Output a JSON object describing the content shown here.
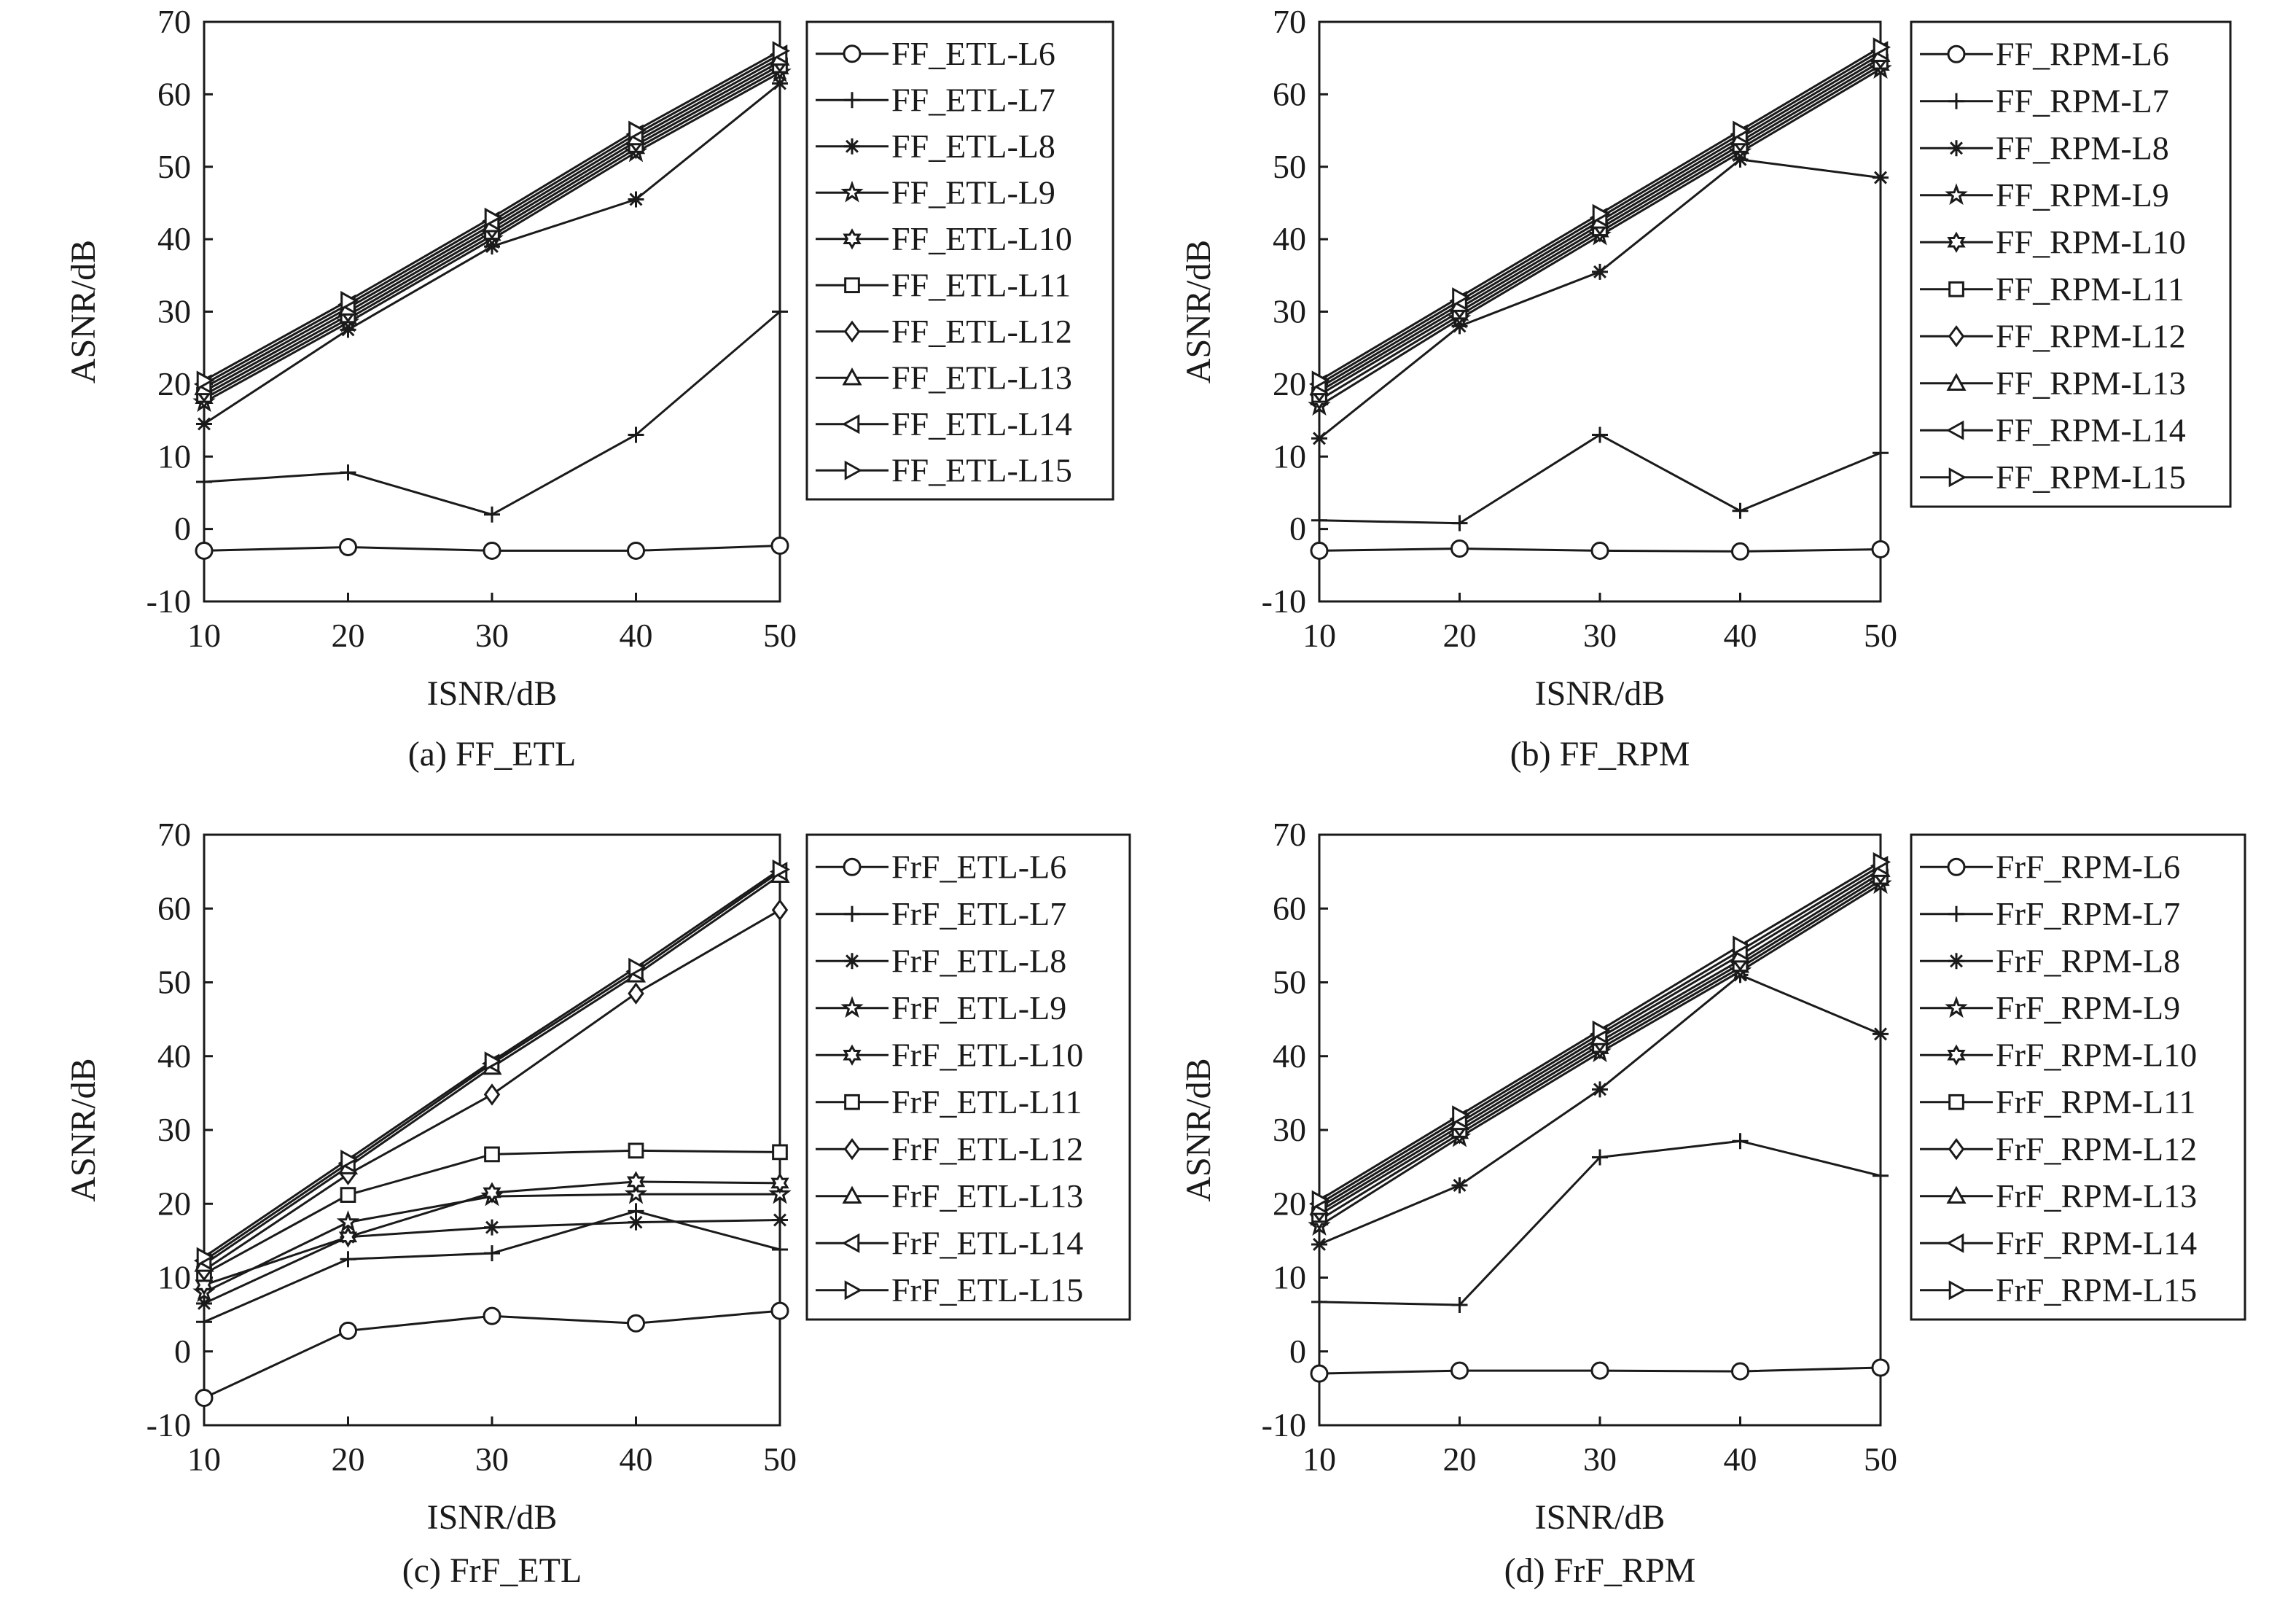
{
  "chart_data": [
    {
      "type": "line",
      "caption": "(a) FF_ETL",
      "xlabel": "ISNR/dB",
      "ylabel": "ASNR/dB",
      "xlim": [
        10,
        50
      ],
      "ylim": [
        -10,
        70
      ],
      "xticks": [
        10,
        20,
        30,
        40,
        50
      ],
      "yticks": [
        -10,
        0,
        10,
        20,
        30,
        40,
        50,
        60,
        70
      ],
      "legend_position": "right",
      "x": [
        10,
        20,
        30,
        40,
        50
      ],
      "series": [
        {
          "name": "FF_ETL-L6",
          "marker": "circle",
          "values": [
            -3,
            -2.5,
            -3,
            -3,
            -2.3
          ]
        },
        {
          "name": "FF_ETL-L7",
          "marker": "plus",
          "values": [
            6.5,
            7.8,
            2,
            13,
            30
          ]
        },
        {
          "name": "FF_ETL-L8",
          "marker": "asterisk",
          "values": [
            14.5,
            27.5,
            39,
            45.5,
            61.5
          ]
        },
        {
          "name": "FF_ETL-L9",
          "marker": "star",
          "values": [
            17.5,
            28.5,
            40,
            52,
            63
          ]
        },
        {
          "name": "FF_ETL-L10",
          "marker": "hexagram",
          "values": [
            18,
            29,
            40.5,
            52.5,
            63.5
          ]
        },
        {
          "name": "FF_ETL-L11",
          "marker": "square",
          "values": [
            18.5,
            29.5,
            41,
            53,
            64
          ]
        },
        {
          "name": "FF_ETL-L12",
          "marker": "diamond",
          "values": [
            19,
            30,
            41.5,
            53.5,
            64.5
          ]
        },
        {
          "name": "FF_ETL-L13",
          "marker": "triangle-up",
          "values": [
            19.5,
            30.5,
            42,
            54,
            65
          ]
        },
        {
          "name": "FF_ETL-L14",
          "marker": "triangle-left",
          "values": [
            20,
            31,
            42.5,
            54.5,
            65.5
          ]
        },
        {
          "name": "FF_ETL-L15",
          "marker": "triangle-right",
          "values": [
            20.5,
            31.5,
            43,
            55,
            66
          ]
        }
      ]
    },
    {
      "type": "line",
      "caption": "(b) FF_RPM",
      "xlabel": "ISNR/dB",
      "ylabel": "ASNR/dB",
      "xlim": [
        10,
        50
      ],
      "ylim": [
        -10,
        70
      ],
      "xticks": [
        10,
        20,
        30,
        40,
        50
      ],
      "yticks": [
        -10,
        0,
        10,
        20,
        30,
        40,
        50,
        60,
        70
      ],
      "legend_position": "right",
      "x": [
        10,
        20,
        30,
        40,
        50
      ],
      "series": [
        {
          "name": "FF_RPM-L6",
          "marker": "circle",
          "values": [
            -3,
            -2.7,
            -3,
            -3.1,
            -2.8
          ]
        },
        {
          "name": "FF_RPM-L7",
          "marker": "plus",
          "values": [
            1.2,
            0.8,
            13,
            2.5,
            10.5
          ]
        },
        {
          "name": "FF_RPM-L8",
          "marker": "asterisk",
          "values": [
            12.5,
            28,
            35.5,
            51,
            48.5
          ]
        },
        {
          "name": "FF_RPM-L9",
          "marker": "star",
          "values": [
            17,
            29,
            40.5,
            52,
            63.5
          ]
        },
        {
          "name": "FF_RPM-L10",
          "marker": "hexagram",
          "values": [
            17.8,
            29.5,
            41,
            52.5,
            64
          ]
        },
        {
          "name": "FF_RPM-L11",
          "marker": "square",
          "values": [
            18.5,
            30,
            41.5,
            53,
            64.5
          ]
        },
        {
          "name": "FF_RPM-L12",
          "marker": "diamond",
          "values": [
            19,
            30.5,
            42,
            53.5,
            65
          ]
        },
        {
          "name": "FF_RPM-L13",
          "marker": "triangle-up",
          "values": [
            19.5,
            31,
            42.5,
            54,
            65.5
          ]
        },
        {
          "name": "FF_RPM-L14",
          "marker": "triangle-left",
          "values": [
            20,
            31.5,
            43,
            54.5,
            66
          ]
        },
        {
          "name": "FF_RPM-L15",
          "marker": "triangle-right",
          "values": [
            20.5,
            32,
            43.5,
            55,
            66.5
          ]
        }
      ]
    },
    {
      "type": "line",
      "caption": "(c) FrF_ETL",
      "xlabel": "ISNR/dB",
      "ylabel": "ASNR/dB",
      "xlim": [
        10,
        50
      ],
      "ylim": [
        -10,
        70
      ],
      "xticks": [
        10,
        20,
        30,
        40,
        50
      ],
      "yticks": [
        -10,
        0,
        10,
        20,
        30,
        40,
        50,
        60,
        70
      ],
      "legend_position": "right",
      "x": [
        10,
        20,
        30,
        40,
        50
      ],
      "series": [
        {
          "name": "FrF_ETL-L6",
          "marker": "circle",
          "values": [
            -6.3,
            2.8,
            4.8,
            3.8,
            5.5
          ]
        },
        {
          "name": "FrF_ETL-L7",
          "marker": "plus",
          "values": [
            4,
            12.5,
            13.3,
            19,
            13.8
          ]
        },
        {
          "name": "FrF_ETL-L8",
          "marker": "asterisk",
          "values": [
            6.5,
            15.5,
            16.8,
            17.5,
            17.8
          ]
        },
        {
          "name": "FrF_ETL-L9",
          "marker": "star",
          "values": [
            8,
            17.5,
            21,
            21.3,
            21.3
          ]
        },
        {
          "name": "FrF_ETL-L10",
          "marker": "hexagram",
          "values": [
            9,
            15.5,
            21.5,
            23,
            22.8
          ]
        },
        {
          "name": "FrF_ETL-L11",
          "marker": "square",
          "values": [
            10.5,
            21.2,
            26.7,
            27.2,
            27
          ]
        },
        {
          "name": "FrF_ETL-L12",
          "marker": "diamond",
          "values": [
            11,
            24,
            34.8,
            48.5,
            59.8
          ]
        },
        {
          "name": "FrF_ETL-L13",
          "marker": "triangle-up",
          "values": [
            11.8,
            25,
            38.5,
            51,
            64.5
          ]
        },
        {
          "name": "FrF_ETL-L14",
          "marker": "triangle-left",
          "values": [
            12.3,
            25.5,
            39,
            51.5,
            65
          ]
        },
        {
          "name": "FrF_ETL-L15",
          "marker": "triangle-right",
          "values": [
            12.8,
            26,
            39.3,
            52,
            65.3
          ]
        }
      ]
    },
    {
      "type": "line",
      "caption": "(d) FrF_RPM",
      "xlabel": "ISNR/dB",
      "ylabel": "ASNR/dB",
      "xlim": [
        10,
        50
      ],
      "ylim": [
        -10,
        70
      ],
      "xticks": [
        10,
        20,
        30,
        40,
        50
      ],
      "yticks": [
        -10,
        0,
        10,
        20,
        30,
        40,
        50,
        60,
        70
      ],
      "legend_position": "right",
      "x": [
        10,
        20,
        30,
        40,
        50
      ],
      "series": [
        {
          "name": "FrF_RPM-L6",
          "marker": "circle",
          "values": [
            -3,
            -2.6,
            -2.6,
            -2.7,
            -2.2
          ]
        },
        {
          "name": "FrF_RPM-L7",
          "marker": "plus",
          "values": [
            6.7,
            6.3,
            26.3,
            28.5,
            23.8
          ]
        },
        {
          "name": "FrF_RPM-L8",
          "marker": "asterisk",
          "values": [
            14.5,
            22.5,
            35.5,
            51,
            43
          ]
        },
        {
          "name": "FrF_RPM-L9",
          "marker": "star",
          "values": [
            17,
            29,
            40.5,
            51.5,
            63.3
          ]
        },
        {
          "name": "FrF_RPM-L10",
          "marker": "hexagram",
          "values": [
            17.8,
            29.5,
            41,
            52,
            63.8
          ]
        },
        {
          "name": "FrF_RPM-L11",
          "marker": "square",
          "values": [
            18.5,
            30,
            41.5,
            52.5,
            64.3
          ]
        },
        {
          "name": "FrF_RPM-L12",
          "marker": "diamond",
          "values": [
            19,
            30.5,
            42,
            53,
            64.8
          ]
        },
        {
          "name": "FrF_RPM-L13",
          "marker": "triangle-up",
          "values": [
            19.5,
            31,
            42.5,
            53.7,
            65.3
          ]
        },
        {
          "name": "FrF_RPM-L14",
          "marker": "triangle-left",
          "values": [
            20,
            31.5,
            43,
            54.3,
            65.8
          ]
        },
        {
          "name": "FrF_RPM-L15",
          "marker": "triangle-right",
          "values": [
            20.5,
            32,
            43.5,
            55,
            66.3
          ]
        }
      ]
    }
  ]
}
